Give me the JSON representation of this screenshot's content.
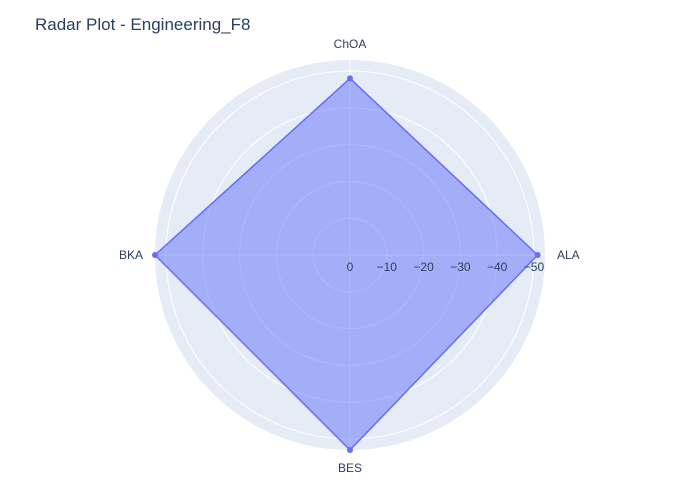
{
  "chart_data": {
    "type": "radar",
    "title": "Radar Plot - Engineering_F8",
    "categories": [
      "ALA",
      "ChOA",
      "BKA",
      "BES"
    ],
    "series": [
      {
        "values": [
          -51,
          -48,
          -53,
          -53
        ]
      }
    ],
    "radial_axis": {
      "range": [
        0,
        -53
      ],
      "ticks": [
        0,
        -10,
        -20,
        -30,
        -40,
        -50
      ],
      "tick_labels": [
        "0",
        "−10",
        "−20",
        "−30",
        "−40",
        "−50"
      ]
    },
    "grid": true,
    "legend": "none",
    "colors": {
      "polar_background": "#e5ecf6",
      "grid": "#ffffff",
      "fill": "#636efa",
      "fill_opacity": 0.5,
      "line": "#636efa",
      "text": "#2a3f5f"
    }
  }
}
